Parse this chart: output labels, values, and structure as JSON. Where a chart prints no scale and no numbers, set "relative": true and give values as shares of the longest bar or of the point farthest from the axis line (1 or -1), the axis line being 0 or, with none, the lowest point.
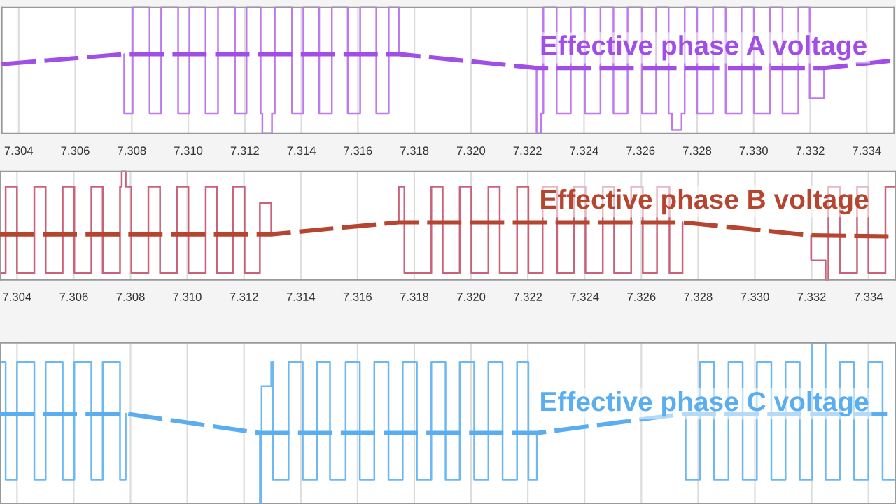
{
  "chart_data": [
    {
      "type": "line",
      "relative": true,
      "xlim": [
        7.3034,
        7.33497
      ],
      "xticks": [
        7.304,
        7.306,
        7.308,
        {
          "value": 7.31,
          "label": "7.310"
        },
        7.312,
        7.314,
        7.316,
        7.318,
        {
          "value": 7.32,
          "label": "7.320"
        },
        7.322,
        7.324,
        7.326,
        7.328,
        {
          "value": 7.33,
          "label": "7.330"
        },
        7.332,
        7.334
      ],
      "tick_labels": "x",
      "grid": "x",
      "series": [
        {
          "color": "#c07af0",
          "line_style": "solid",
          "x": [
            7.30773,
            7.30773,
            7.30803,
            7.30803,
            7.30863,
            7.30863,
            7.30904,
            7.30904,
            7.30964,
            7.30964,
            7.31004,
            7.31004,
            7.31061,
            7.31061,
            7.31105,
            7.31105,
            7.31165,
            7.31165,
            7.31206,
            7.31206,
            7.31256,
            7.31256,
            7.31262,
            7.31262,
            7.31296,
            7.31296,
            7.31306,
            7.31306,
            7.31367,
            7.31367,
            7.31407,
            7.31407,
            7.31463,
            7.31463,
            7.31508,
            7.31508,
            7.31564,
            7.31564,
            7.31608,
            7.31608,
            7.31665,
            7.31665,
            7.31709,
            7.31709,
            7.31745,
            7.31745,
            7.32,
            7.32232,
            7.32232,
            7.32248,
            7.32248,
            7.32256,
            7.32256,
            7.32303,
            7.32303,
            7.32353,
            7.32353,
            7.32403,
            7.32403,
            7.32458,
            7.32458,
            7.32504,
            7.32504,
            7.32554,
            7.32554,
            7.32605,
            7.32605,
            7.32655,
            7.32655,
            7.32699,
            7.32699,
            7.32711,
            7.32711,
            7.32745,
            7.32745,
            7.32756,
            7.32756,
            7.328,
            7.328,
            7.32856,
            7.32856,
            7.32901,
            7.32901,
            7.32957,
            7.32957,
            7.33001,
            7.33001,
            7.33058,
            7.33058,
            7.33102,
            7.33102,
            7.33158,
            7.33158,
            7.33198,
            7.33198,
            7.33249,
            7.33249
          ],
          "values": [
            0.63,
            0.16,
            0.16,
            1,
            1,
            0.16,
            0.16,
            1,
            1,
            0.16,
            0.16,
            1,
            1,
            0.16,
            0.16,
            1,
            1,
            0.16,
            0.16,
            1,
            1,
            0.16,
            0.16,
            0,
            0,
            0.16,
            0.16,
            1,
            1,
            0.16,
            0.16,
            1,
            1,
            0.16,
            0.16,
            1,
            1,
            0.16,
            0.16,
            1,
            1,
            0.16,
            0.16,
            1,
            1,
            0.63,
            null,
            0.52,
            0,
            0,
            0.16,
            0.16,
            1,
            1,
            0.16,
            0.16,
            1,
            1,
            0.16,
            0.16,
            1,
            1,
            0.16,
            0.16,
            1,
            1,
            0.16,
            0.16,
            1,
            1,
            0.16,
            0.16,
            0.03,
            0.03,
            0.16,
            0.16,
            1,
            1,
            0.16,
            0.16,
            1,
            1,
            0.16,
            0.16,
            1,
            1,
            0.16,
            0.16,
            1,
            1,
            0.16,
            0.16,
            1,
            1,
            0.28,
            0.28,
            0.52
          ]
        },
        {
          "name": "Effective phase A voltage",
          "color": "#a04ee6",
          "line_style": "dashed",
          "x": [
            7.3034,
            7.30773,
            7.31745,
            7.32232,
            7.33249,
            7.33497
          ],
          "values": [
            0.55,
            0.63,
            0.63,
            0.52,
            0.52,
            0.58
          ]
        }
      ]
    },
    {
      "type": "line",
      "relative": true,
      "xlim": [
        7.3034,
        7.33497
      ],
      "xticks": [
        7.304,
        7.306,
        7.308,
        {
          "value": 7.31,
          "label": "7.310"
        },
        7.312,
        7.314,
        7.316,
        7.318,
        {
          "value": 7.32,
          "label": "7.320"
        },
        7.322,
        7.324,
        7.326,
        7.328,
        {
          "value": 7.33,
          "label": "7.330"
        },
        7.332,
        7.334
      ],
      "tick_labels": "x",
      "grid": "x",
      "series": [
        {
          "color": "#c9627a",
          "line_style": "solid",
          "x": [
            7.3034,
            7.3036,
            7.3036,
            7.304,
            7.304,
            7.30461,
            7.30461,
            7.30501,
            7.30501,
            7.30561,
            7.30561,
            7.30602,
            7.30602,
            7.30662,
            7.30662,
            7.30702,
            7.30702,
            7.30763,
            7.30763,
            7.30769,
            7.30769,
            7.30783,
            7.30783,
            7.30803,
            7.30803,
            7.30863,
            7.30863,
            7.30904,
            7.30904,
            7.30964,
            7.30964,
            7.31004,
            7.31004,
            7.31065,
            7.31065,
            7.31105,
            7.31105,
            7.31161,
            7.31161,
            7.31202,
            7.31202,
            7.31256,
            7.31256,
            7.31296,
            7.31296,
            7.315,
            7.31745,
            7.31745,
            7.31765,
            7.31765,
            7.3186,
            7.3186,
            7.319,
            7.319,
            7.3196,
            7.3196,
            7.32001,
            7.32001,
            7.32061,
            7.32061,
            7.32101,
            7.32101,
            7.32162,
            7.32162,
            7.32202,
            7.32202,
            7.32252,
            7.32252,
            7.32303,
            7.32303,
            7.32363,
            7.32363,
            7.32403,
            7.32403,
            7.32464,
            7.32464,
            7.32504,
            7.32504,
            7.32564,
            7.32564,
            7.32605,
            7.32605,
            7.32655,
            7.32655,
            7.32699,
            7.32699,
            7.32745,
            7.32745,
            7.33,
            7.33198,
            7.33198,
            7.33249,
            7.33249,
            7.33259,
            7.33259,
            7.33299,
            7.33299,
            7.3336,
            7.3336,
            7.334,
            7.334,
            7.3346,
            7.3346,
            7.33497
          ],
          "values": [
            0.06,
            0.06,
            0.86,
            0.86,
            0.06,
            0.06,
            0.86,
            0.86,
            0.06,
            0.06,
            0.86,
            0.86,
            0.06,
            0.06,
            0.86,
            0.86,
            0.06,
            0.06,
            0.86,
            0.86,
            1,
            1,
            0.86,
            0.86,
            0.06,
            0.06,
            0.86,
            0.86,
            0.06,
            0.06,
            0.86,
            0.86,
            0.06,
            0.06,
            0.86,
            0.86,
            0.06,
            0.06,
            0.86,
            0.86,
            0.06,
            0.06,
            0.71,
            0.71,
            0.43,
            null,
            0.53,
            0.86,
            0.86,
            0.06,
            0.06,
            0.86,
            0.86,
            0.06,
            0.06,
            0.86,
            0.86,
            0.06,
            0.06,
            0.86,
            0.86,
            0.06,
            0.06,
            0.86,
            0.86,
            0.06,
            0.06,
            0.86,
            0.86,
            0.06,
            0.06,
            0.86,
            0.86,
            0.06,
            0.06,
            0.86,
            0.86,
            0.06,
            0.06,
            0.86,
            0.86,
            0.06,
            0.06,
            0.86,
            0.86,
            0.06,
            0.06,
            0.53,
            null,
            0.41,
            0.18,
            0.18,
            0,
            0,
            0.86,
            0.86,
            0.06,
            0.06,
            0.86,
            0.86,
            0.06,
            0.06,
            0.86,
            0.86
          ]
        },
        {
          "name": "Effective phase B voltage",
          "color": "#b5452e",
          "line_style": "dashed",
          "x": [
            7.3034,
            7.31296,
            7.31745,
            7.32745,
            7.33198,
            7.33497
          ],
          "values": [
            0.42,
            0.42,
            0.53,
            0.53,
            0.41,
            0.4
          ]
        }
      ]
    },
    {
      "type": "line",
      "relative": true,
      "xlim": [
        7.3034,
        7.33497
      ],
      "xticks": [
        {
          "value": 7.304,
          "label": null
        },
        {
          "value": 7.306,
          "label": null
        },
        {
          "value": 7.308,
          "label": null
        },
        {
          "value": 7.31,
          "label": null
        },
        {
          "value": 7.312,
          "label": null
        },
        {
          "value": 7.314,
          "label": null
        },
        {
          "value": 7.316,
          "label": null
        },
        {
          "value": 7.318,
          "label": null
        },
        {
          "value": 7.32,
          "label": null
        },
        {
          "value": 7.322,
          "label": null
        },
        {
          "value": 7.324,
          "label": null
        },
        {
          "value": 7.326,
          "label": null
        },
        {
          "value": 7.328,
          "label": null
        },
        {
          "value": 7.33,
          "label": null
        },
        {
          "value": 7.332,
          "label": null
        },
        {
          "value": 7.334,
          "label": null
        }
      ],
      "tick_labels": false,
      "grid": "x",
      "series": [
        {
          "color": "#6cb8f2",
          "line_style": "solid",
          "x": [
            7.3034,
            7.3036,
            7.3036,
            7.304,
            7.304,
            7.30461,
            7.30461,
            7.30501,
            7.30501,
            7.30561,
            7.30561,
            7.30602,
            7.30602,
            7.30662,
            7.30662,
            7.30702,
            7.30702,
            7.30763,
            7.30763,
            7.30783,
            7.30783,
            7.31,
            7.31256,
            7.31256,
            7.31262,
            7.31262,
            7.31296,
            7.31296,
            7.31302,
            7.31302,
            7.31357,
            7.31357,
            7.31407,
            7.31407,
            7.31457,
            7.31457,
            7.31503,
            7.31503,
            7.31558,
            7.31558,
            7.31608,
            7.31608,
            7.31659,
            7.31659,
            7.31709,
            7.31709,
            7.31759,
            7.31759,
            7.31809,
            7.31809,
            7.3186,
            7.3186,
            7.3191,
            7.3191,
            7.3196,
            7.3196,
            7.32011,
            7.32011,
            7.32061,
            7.32061,
            7.32111,
            7.32111,
            7.32162,
            7.32162,
            7.32202,
            7.32202,
            7.32232,
            7.32232,
            7.325,
            7.32756,
            7.32756,
            7.32806,
            7.32806,
            7.32856,
            7.32856,
            7.32907,
            7.32907,
            7.32957,
            7.32957,
            7.33007,
            7.33007,
            7.33058,
            7.33058,
            7.33108,
            7.33108,
            7.33158,
            7.33158,
            7.33202,
            7.33202,
            7.33249,
            7.33249,
            7.33299,
            7.33299,
            7.33349,
            7.33349,
            7.334,
            7.334,
            7.3345,
            7.3345,
            7.33497
          ],
          "values": [
            0.88,
            0.88,
            0.15,
            0.15,
            0.88,
            0.88,
            0.15,
            0.15,
            0.88,
            0.88,
            0.15,
            0.15,
            0.88,
            0.88,
            0.15,
            0.15,
            0.88,
            0.88,
            0.15,
            0.15,
            0.56,
            null,
            0.44,
            0,
            0,
            0.73,
            0.73,
            0.88,
            0.88,
            0.15,
            0.15,
            0.88,
            0.88,
            0.15,
            0.15,
            0.88,
            0.88,
            0.15,
            0.15,
            0.88,
            0.88,
            0.15,
            0.15,
            0.88,
            0.88,
            0.15,
            0.15,
            0.88,
            0.88,
            0.15,
            0.15,
            0.88,
            0.88,
            0.15,
            0.15,
            0.88,
            0.88,
            0.15,
            0.15,
            0.88,
            0.88,
            0.15,
            0.15,
            0.88,
            0.88,
            0.15,
            0.15,
            0.44,
            null,
            0.56,
            0.15,
            0.15,
            0.88,
            0.88,
            0.15,
            0.15,
            0.88,
            0.88,
            0.15,
            0.15,
            0.88,
            0.88,
            0.15,
            0.15,
            0.88,
            0.88,
            0.15,
            0.15,
            1,
            1,
            0.15,
            0.15,
            0.88,
            0.88,
            0.15,
            0.15,
            0.88,
            0.88,
            0.15,
            0.15
          ]
        },
        {
          "name": "Effective phase C voltage",
          "color": "#5aaef0",
          "line_style": "dashed",
          "x": [
            7.3034,
            7.30783,
            7.31256,
            7.32232,
            7.32756,
            7.33497
          ],
          "values": [
            0.56,
            0.56,
            0.44,
            0.44,
            0.56,
            0.56
          ]
        }
      ]
    }
  ]
}
